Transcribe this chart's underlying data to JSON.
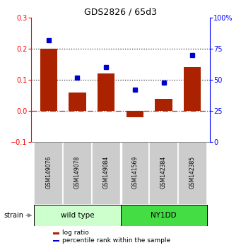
{
  "title": "GDS2826 / 65d3",
  "samples": [
    "GSM149076",
    "GSM149078",
    "GSM149084",
    "GSM141569",
    "GSM142384",
    "GSM142385"
  ],
  "log_ratio": [
    0.2,
    0.06,
    0.12,
    -0.02,
    0.04,
    0.14
  ],
  "percentile_rank": [
    82,
    52,
    60,
    42,
    48,
    70
  ],
  "groups": [
    {
      "name": "wild type",
      "n": 3,
      "color": "#ccffcc",
      "border_color": "#000000"
    },
    {
      "name": "NY1DD",
      "n": 3,
      "color": "#44dd44",
      "border_color": "#000000"
    }
  ],
  "bar_color": "#aa2200",
  "dot_color": "#0000cc",
  "ylim_left": [
    -0.1,
    0.3
  ],
  "ylim_right": [
    0,
    100
  ],
  "yticks_left": [
    -0.1,
    0.0,
    0.1,
    0.2,
    0.3
  ],
  "yticks_right": [
    0,
    25,
    50,
    75,
    100
  ],
  "hlines": [
    0.1,
    0.2
  ],
  "hline_zero_color": "#cc2222",
  "hline_dotted_color": "#333333",
  "background_color": "#ffffff",
  "label_bg_color": "#cccccc",
  "label_border_color": "#888888",
  "strain_label": "strain",
  "legend_items": [
    "log ratio",
    "percentile rank within the sample"
  ],
  "figwidth": 3.41,
  "figheight": 3.54,
  "dpi": 100
}
